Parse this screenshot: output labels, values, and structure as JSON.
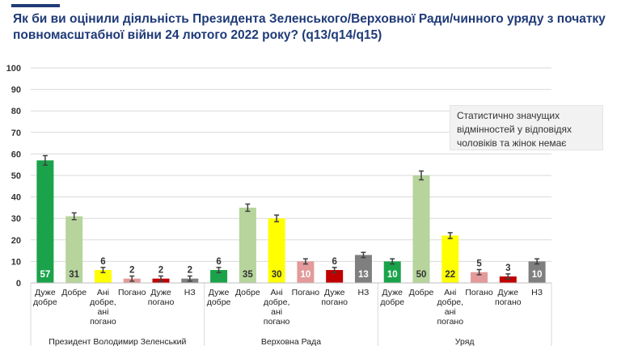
{
  "title": "Як би ви оцінили діяльність Президента Зеленського/Верховної Ради/чинного уряду з початку повномасштабної війни 24 лютого 2022 року? (q13/q14/q15)",
  "note": "Статистично значущих відмінностей у відповідях чоловіків та жінок немає",
  "colors": {
    "accent": "#1f3a78",
    "bars": [
      "#1aa34a",
      "#b6d49b",
      "#ffff00",
      "#e39a9a",
      "#c00000",
      "#7f7f7f"
    ]
  },
  "chart_data": {
    "type": "bar",
    "ylim": [
      0,
      100
    ],
    "yticks": [
      "0",
      "10",
      "20",
      "30",
      "40",
      "50",
      "60",
      "70",
      "80",
      "90",
      "100"
    ],
    "grid": true,
    "error_bars": true,
    "categories": [
      "Дуже добре",
      "Добре",
      "Ані добре, ані погано",
      "Погано",
      "Дуже погано",
      "НЗ"
    ],
    "groups": [
      {
        "name": "Президент Володимир Зеленський",
        "values": [
          57,
          31,
          6,
          2,
          2,
          2
        ]
      },
      {
        "name": "Верховна Рада",
        "values": [
          6,
          35,
          30,
          10,
          6,
          13
        ]
      },
      {
        "name": "Уряд",
        "values": [
          10,
          50,
          22,
          5,
          3,
          10
        ]
      }
    ]
  }
}
